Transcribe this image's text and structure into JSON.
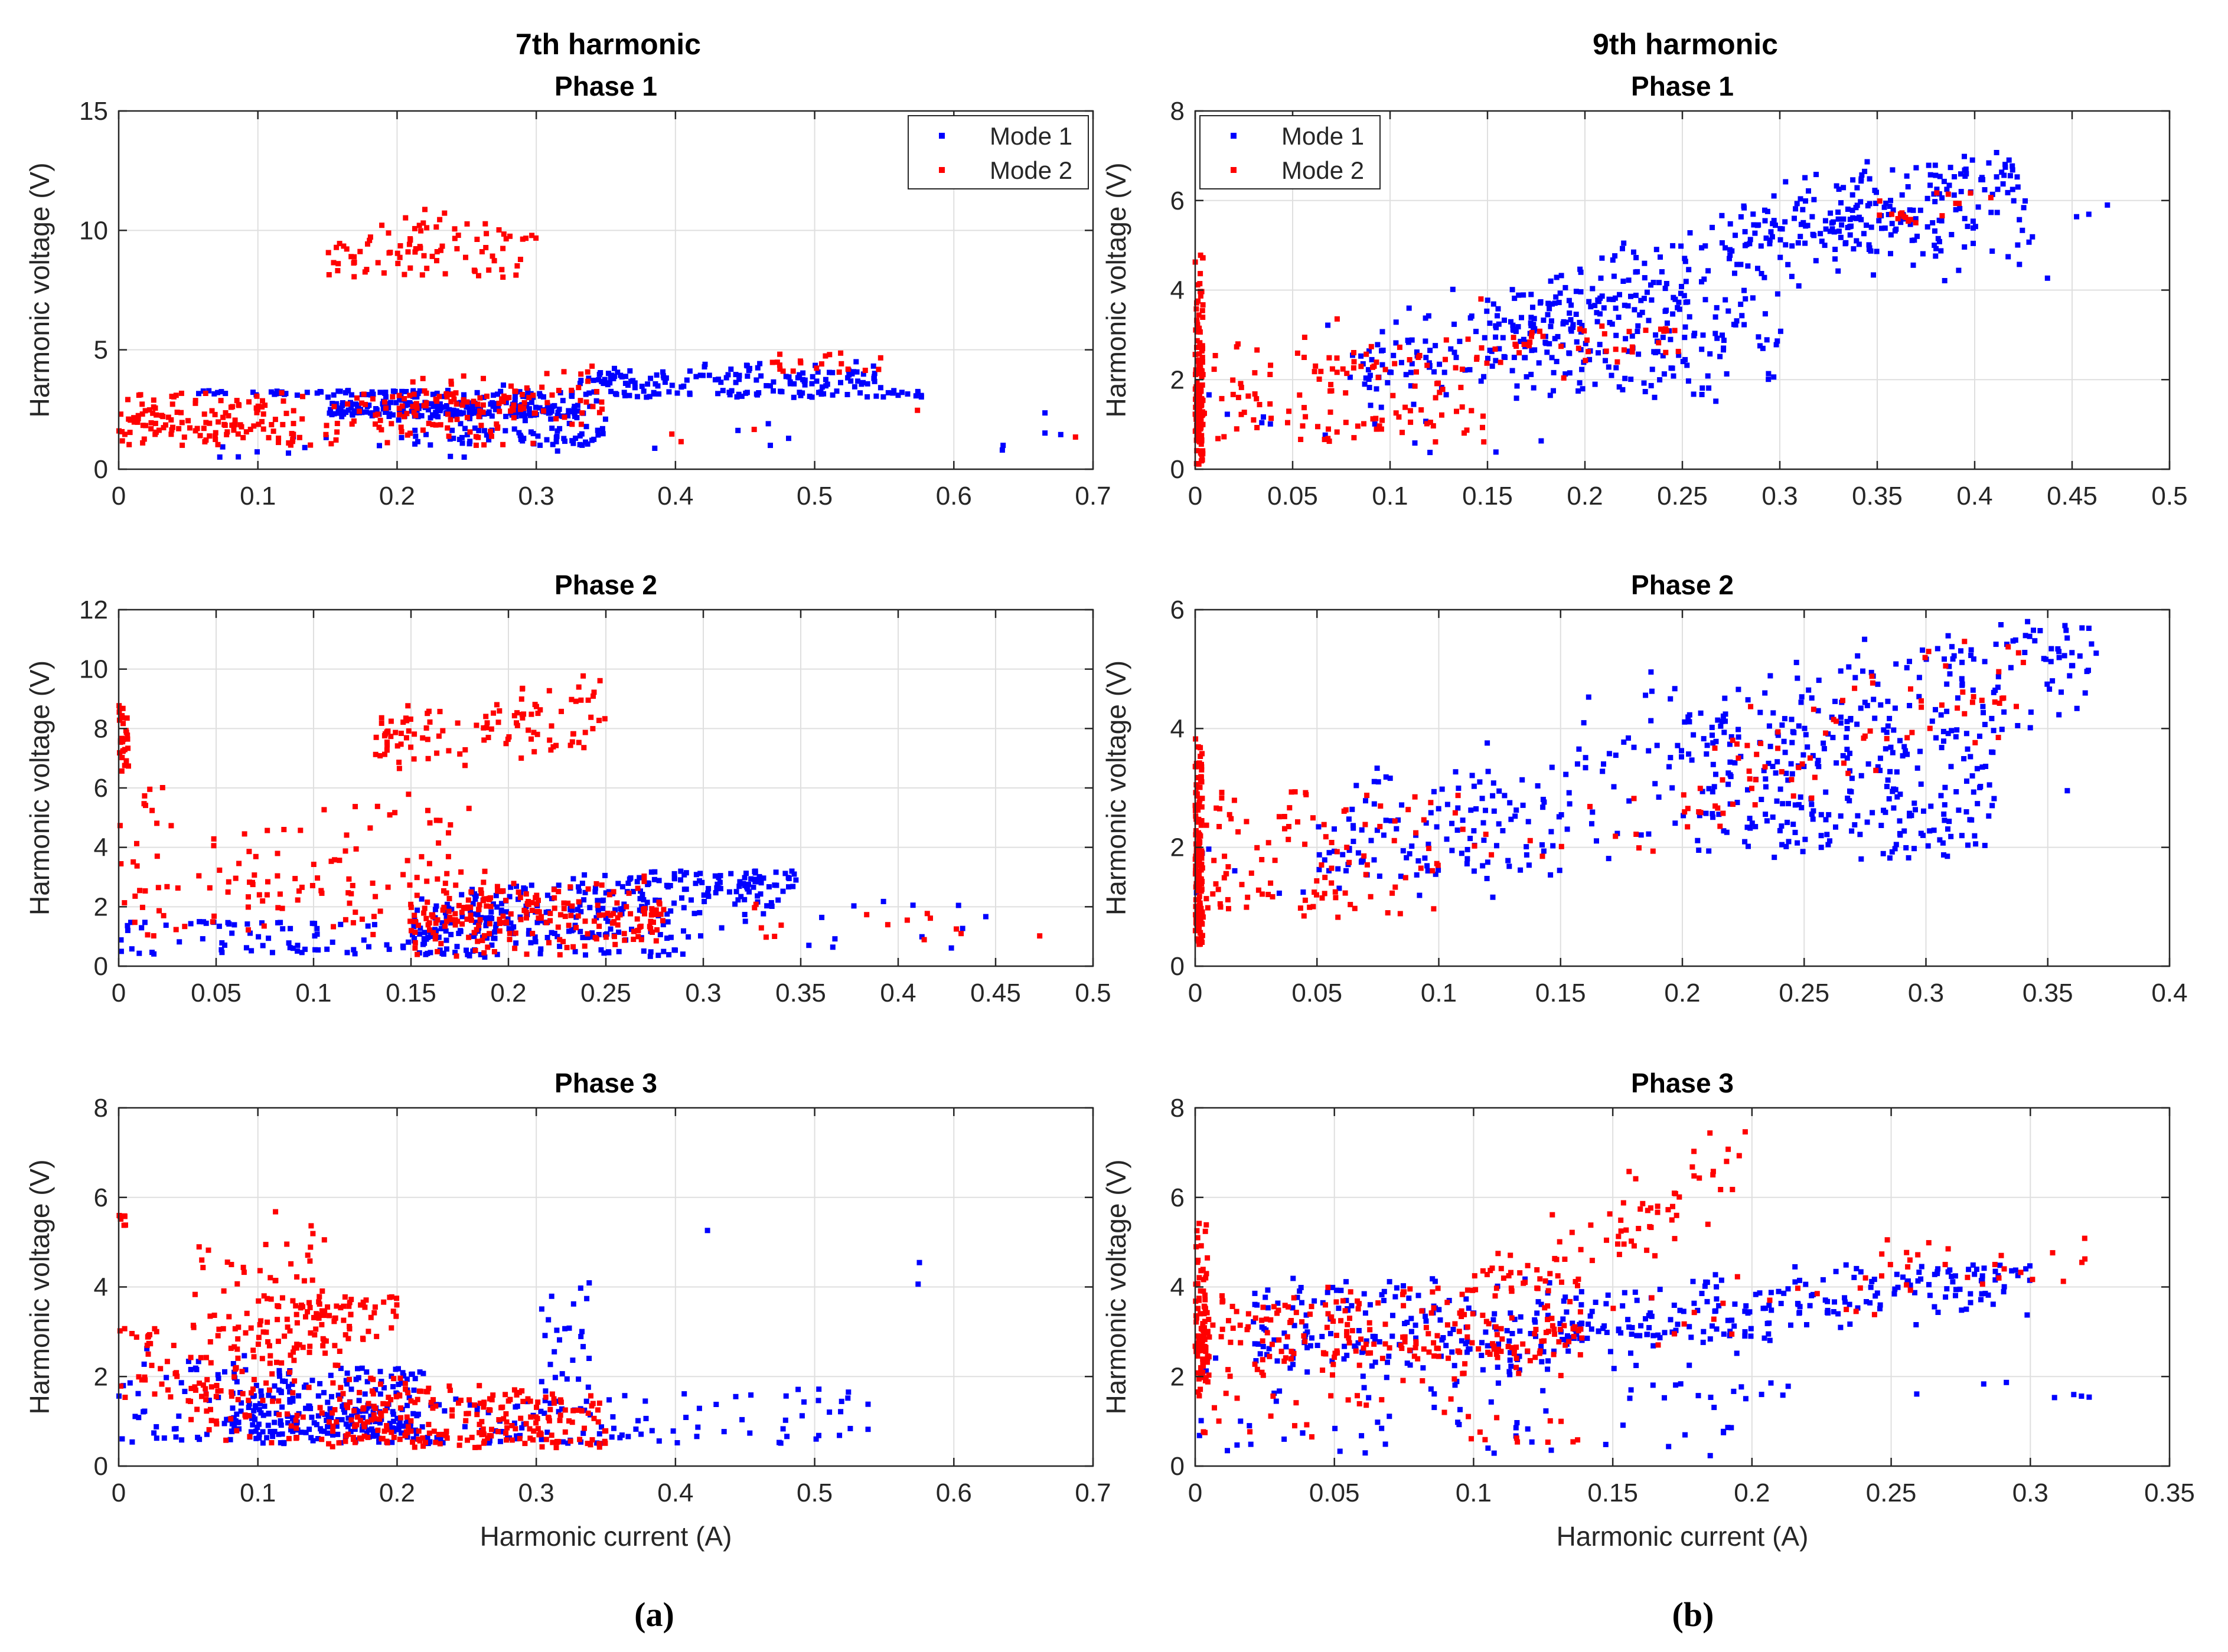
{
  "figure": {
    "captions": [
      "(a)",
      "(b)"
    ],
    "legend": {
      "labels": [
        "Mode 1",
        "Mode 2"
      ],
      "colors": [
        "#0000ff",
        "#ff0000"
      ]
    }
  },
  "chart_data": [
    {
      "type": "scatter",
      "column_title": "7th harmonic",
      "title": "Phase 1",
      "xlabel": "",
      "ylabel": "Harmonic voltage (V)",
      "xlim": [
        0,
        0.7
      ],
      "ylim": [
        0,
        15
      ],
      "xticks": [
        0,
        0.1,
        0.2,
        0.3,
        0.4,
        0.5,
        0.6,
        0.7
      ],
      "yticks": [
        0,
        5,
        10,
        15
      ],
      "grid": true,
      "legend": "top-right",
      "series": [
        {
          "name": "Mode 1",
          "color": "#0000ff",
          "cloud": [
            [
              0.05,
              0.58,
              1.2,
              0.1,
              3.0,
              4.8,
              0.3,
              140
            ],
            [
              0.15,
              0.33,
              1.5,
              0.6,
              2.2,
              4.2,
              0.7,
              220
            ],
            [
              0.33,
              0.55,
              3.8,
              0.0,
              3.4,
              5.0,
              0.3,
              120
            ],
            [
              0.2,
              0.35,
              1.0,
              0.3,
              1.0,
              3.5,
              1.0,
              80
            ],
            [
              0.0,
              0.7,
              0.5,
              0.5,
              0.5,
              6.5,
              1.0,
              25
            ]
          ]
        },
        {
          "name": "Mode 2",
          "color": "#ff0000",
          "cloud": [
            [
              0.0,
              0.3,
              2.2,
              0.8,
              1.0,
              3.2,
              0.8,
              170
            ],
            [
              0.15,
              0.3,
              8.8,
              1.3,
              8.0,
              14.0,
              0.7,
              90
            ],
            [
              0.0,
              0.13,
              1.0,
              1.0,
              1.0,
              12.0,
              1.0,
              60
            ],
            [
              0.2,
              0.35,
              2.8,
              0.8,
              1.5,
              5.0,
              0.6,
              60
            ],
            [
              0.45,
              0.55,
              4.3,
              0.2,
              4.0,
              4.9,
              0.4,
              20
            ],
            [
              0.0,
              0.7,
              0.5,
              1.0,
              1.0,
              6.0,
              1.0,
              8
            ]
          ]
        }
      ]
    },
    {
      "type": "scatter",
      "column_title": "9th harmonic",
      "title": "Phase 1",
      "xlabel": "",
      "ylabel": "Harmonic voltage (V)",
      "xlim": [
        0,
        0.5
      ],
      "ylim": [
        0,
        8
      ],
      "xticks": [
        0,
        0.05,
        0.1,
        0.15,
        0.2,
        0.25,
        0.3,
        0.35,
        0.4,
        0.45,
        0.5
      ],
      "yticks": [
        0,
        2,
        4,
        6,
        8
      ],
      "grid": true,
      "legend": "top-left",
      "series": [
        {
          "name": "Mode 1",
          "color": "#0000ff",
          "cloud": [
            [
              0.08,
              0.42,
              1.0,
              14.0,
              0.5,
              7.0,
              0.5,
              300
            ],
            [
              0.15,
              0.3,
              2.8,
              0.0,
              1.5,
              4.0,
              0.7,
              180
            ],
            [
              0.28,
              0.43,
              5.5,
              0.0,
              4.3,
              6.6,
              0.5,
              120
            ],
            [
              0.0,
              0.47,
              0.0,
              14.0,
              0.3,
              7.3,
              1.0,
              40
            ]
          ]
        },
        {
          "name": "Mode 2",
          "color": "#ff0000",
          "cloud": [
            [
              0.0,
              0.004,
              2.0,
              0.0,
              0.1,
              4.8,
              1.2,
              140
            ],
            [
              0.0,
              0.15,
              1.6,
              0.0,
              0.6,
              2.8,
              1.0,
              120
            ],
            [
              0.15,
              0.25,
              2.3,
              4.0,
              1.2,
              3.2,
              0.6,
              40
            ],
            [
              0.35,
              0.41,
              1.2,
              12.0,
              5.5,
              6.3,
              0.3,
              18
            ],
            [
              0.05,
              0.15,
              2.5,
              0.0,
              2.0,
              4.8,
              1.0,
              10
            ]
          ]
        }
      ]
    },
    {
      "type": "scatter",
      "title": "Phase 2",
      "xlabel": "",
      "ylabel": "Harmonic voltage (V)",
      "xlim": [
        0,
        0.5
      ],
      "ylim": [
        0,
        12
      ],
      "xticks": [
        0,
        0.05,
        0.1,
        0.15,
        0.2,
        0.25,
        0.3,
        0.35,
        0.4,
        0.45,
        0.5
      ],
      "yticks": [
        0,
        2,
        4,
        6,
        8,
        10,
        12
      ],
      "grid": true,
      "series": [
        {
          "name": "Mode 1",
          "color": "#0000ff",
          "cloud": [
            [
              0.0,
              0.15,
              0.9,
              0.0,
              0.4,
              1.5,
              1.0,
              70
            ],
            [
              0.15,
              0.35,
              0.3,
              7.5,
              0.3,
              3.2,
              0.6,
              280
            ],
            [
              0.15,
              0.3,
              0.7,
              0.0,
              0.3,
              1.2,
              0.8,
              80
            ],
            [
              0.35,
              0.45,
              1.5,
              0.0,
              0.6,
              2.2,
              1.0,
              12
            ]
          ]
        },
        {
          "name": "Mode 2",
          "color": "#ff0000",
          "cloud": [
            [
              0.0,
              0.005,
              7.7,
              0.0,
              6.5,
              8.8,
              1.0,
              30
            ],
            [
              0.13,
              0.25,
              6.5,
              8.0,
              6.5,
              10.6,
              0.6,
              110
            ],
            [
              0.15,
              0.28,
              1.7,
              0.0,
              0.3,
              3.2,
              0.6,
              220
            ],
            [
              0.0,
              0.18,
              4.0,
              0.0,
              1.0,
              9.0,
              1.0,
              70
            ],
            [
              0.0,
              0.15,
              2.0,
              0.0,
              1.0,
              3.0,
              1.0,
              50
            ],
            [
              0.3,
              0.5,
              1.5,
              0.0,
              0.5,
              2.3,
              1.0,
              15
            ]
          ]
        }
      ]
    },
    {
      "type": "scatter",
      "title": "Phase 2",
      "xlabel": "",
      "ylabel": "Harmonic voltage (V)",
      "xlim": [
        0,
        0.4
      ],
      "ylim": [
        0,
        6
      ],
      "xticks": [
        0,
        0.05,
        0.1,
        0.15,
        0.2,
        0.25,
        0.3,
        0.35,
        0.4
      ],
      "yticks": [
        0,
        2,
        4,
        6
      ],
      "grid": true,
      "series": [
        {
          "name": "Mode 1",
          "color": "#0000ff",
          "cloud": [
            [
              0.05,
              0.37,
              1.2,
              11.5,
              1.5,
              5.8,
              0.6,
              350
            ],
            [
              0.2,
              0.33,
              2.8,
              0.0,
              1.8,
              4.3,
              0.8,
              200
            ],
            [
              0.0,
              0.37,
              1.5,
              8.0,
              1.0,
              5.8,
              1.0,
              30
            ]
          ]
        },
        {
          "name": "Mode 2",
          "color": "#ff0000",
          "cloud": [
            [
              0.0,
              0.003,
              1.8,
              0.0,
              0.3,
              4.0,
              1.2,
              140
            ],
            [
              0.0,
              0.1,
              1.6,
              4.0,
              0.8,
              3.0,
              1.0,
              110
            ],
            [
              0.2,
              0.34,
              0.0,
              14.5,
              2.2,
              5.5,
              0.5,
              80
            ],
            [
              0.1,
              0.2,
              2.2,
              0.0,
              1.8,
              3.0,
              1.0,
              15
            ]
          ]
        }
      ]
    },
    {
      "type": "scatter",
      "title": "Phase 3",
      "xlabel": "Harmonic current (A)",
      "ylabel": "Harmonic voltage (V)",
      "xlim": [
        0,
        0.7
      ],
      "ylim": [
        0,
        8
      ],
      "xticks": [
        0,
        0.1,
        0.2,
        0.3,
        0.4,
        0.5,
        0.6,
        0.7
      ],
      "yticks": [
        0,
        2,
        4,
        6,
        8
      ],
      "grid": true,
      "series": [
        {
          "name": "Mode 1",
          "color": "#0000ff",
          "cloud": [
            [
              0.0,
              0.1,
              1.2,
              0.0,
              0.5,
              2.5,
              1.0,
              50
            ],
            [
              0.08,
              0.22,
              1.2,
              0.0,
              0.5,
              2.2,
              0.6,
              270
            ],
            [
              0.22,
              0.35,
              0.9,
              0.0,
              0.5,
              1.5,
              0.8,
              60
            ],
            [
              0.3,
              0.34,
              3.0,
              0.0,
              1.5,
              5.0,
              1.0,
              25
            ],
            [
              0.35,
              0.55,
              1.0,
              0.0,
              0.5,
              1.8,
              1.0,
              50
            ],
            [
              0.0,
              0.62,
              1.0,
              5.0,
              0.5,
              5.6,
              1.0,
              6
            ]
          ]
        },
        {
          "name": "Mode 2",
          "color": "#ff0000",
          "cloud": [
            [
              0.0,
              0.1,
              2.3,
              0.0,
              1.5,
              3.2,
              1.0,
              60
            ],
            [
              0.1,
              0.2,
              2.3,
              6.0,
              2.0,
              3.8,
              0.6,
              100
            ],
            [
              0.05,
              0.15,
              4.0,
              0.0,
              2.5,
              7.5,
              1.0,
              50
            ],
            [
              0.0,
              0.005,
              5.5,
              0.0,
              5.3,
              5.6,
              1.0,
              8
            ],
            [
              0.15,
              0.35,
              1.0,
              0.0,
              0.4,
              1.8,
              0.6,
              220
            ],
            [
              0.05,
              0.22,
              1.2,
              0.0,
              0.5,
              2.0,
              0.7,
              80
            ]
          ]
        }
      ]
    },
    {
      "type": "scatter",
      "title": "Phase 3",
      "xlabel": "Harmonic current (A)",
      "ylabel": "Harmonic voltage (V)",
      "xlim": [
        0,
        0.35
      ],
      "ylim": [
        0,
        8
      ],
      "xticks": [
        0,
        0.05,
        0.1,
        0.15,
        0.2,
        0.25,
        0.3,
        0.35
      ],
      "yticks": [
        0,
        2,
        4,
        6,
        8
      ],
      "grid": true,
      "series": [
        {
          "name": "Mode 1",
          "color": "#0000ff",
          "cloud": [
            [
              0.02,
              0.14,
              3.1,
              0.0,
              2.0,
              4.2,
              0.6,
              180
            ],
            [
              0.13,
              0.3,
              1.8,
              8.5,
              2.8,
              4.5,
              0.4,
              220
            ],
            [
              0.0,
              0.2,
              1.5,
              0.0,
              0.2,
              3.0,
              1.0,
              80
            ],
            [
              0.15,
              0.33,
              1.7,
              0.0,
              1.5,
              1.9,
              1.0,
              20
            ]
          ]
        },
        {
          "name": "Mode 2",
          "color": "#ff0000",
          "cloud": [
            [
              0.0,
              0.005,
              3.0,
              0.0,
              0.3,
              5.5,
              1.2,
              90
            ],
            [
              0.0,
              0.14,
              3.0,
              0.0,
              2.0,
              4.0,
              0.6,
              200
            ],
            [
              0.1,
              0.2,
              0.0,
              35.0,
              4.0,
              7.8,
              0.5,
              80
            ],
            [
              0.0,
              0.14,
              2.0,
              0.0,
              0.5,
              6.2,
              1.0,
              60
            ],
            [
              0.12,
              0.32,
              0.8,
              13.0,
              2.5,
              5.2,
              0.5,
              50
            ]
          ]
        }
      ]
    }
  ]
}
